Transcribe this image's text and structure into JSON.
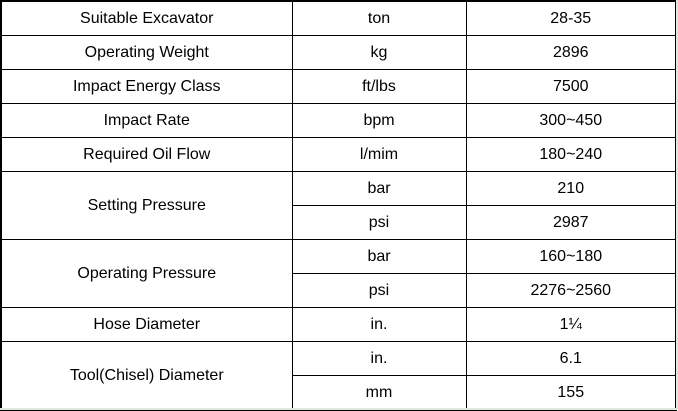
{
  "rows": [
    {
      "name": "Suitable Excavator",
      "unit": "ton",
      "value": "28-35"
    },
    {
      "name": "Operating Weight",
      "unit": "kg",
      "value": "2896"
    },
    {
      "name": "Impact Energy Class",
      "unit": "ft/lbs",
      "value": "7500"
    },
    {
      "name": "Impact Rate",
      "unit": "bpm",
      "value": "300~450"
    },
    {
      "name": "Required Oil Flow",
      "unit": "l/mim",
      "value": "180~240"
    },
    {
      "name": "Setting Pressure",
      "unit": "bar",
      "value": "210",
      "unit2": "psi",
      "value2": "2987"
    },
    {
      "name": "Operating Pressure",
      "unit": "bar",
      "value": "160~180",
      "unit2": "psi",
      "value2": "2276~2560"
    },
    {
      "name": "Hose Diameter",
      "unit": "in.",
      "value": "1¼"
    },
    {
      "name": "Tool(Chisel) Diameter",
      "unit": "in.",
      "value": "6.1",
      "unit2": "mm",
      "value2": "155"
    }
  ]
}
